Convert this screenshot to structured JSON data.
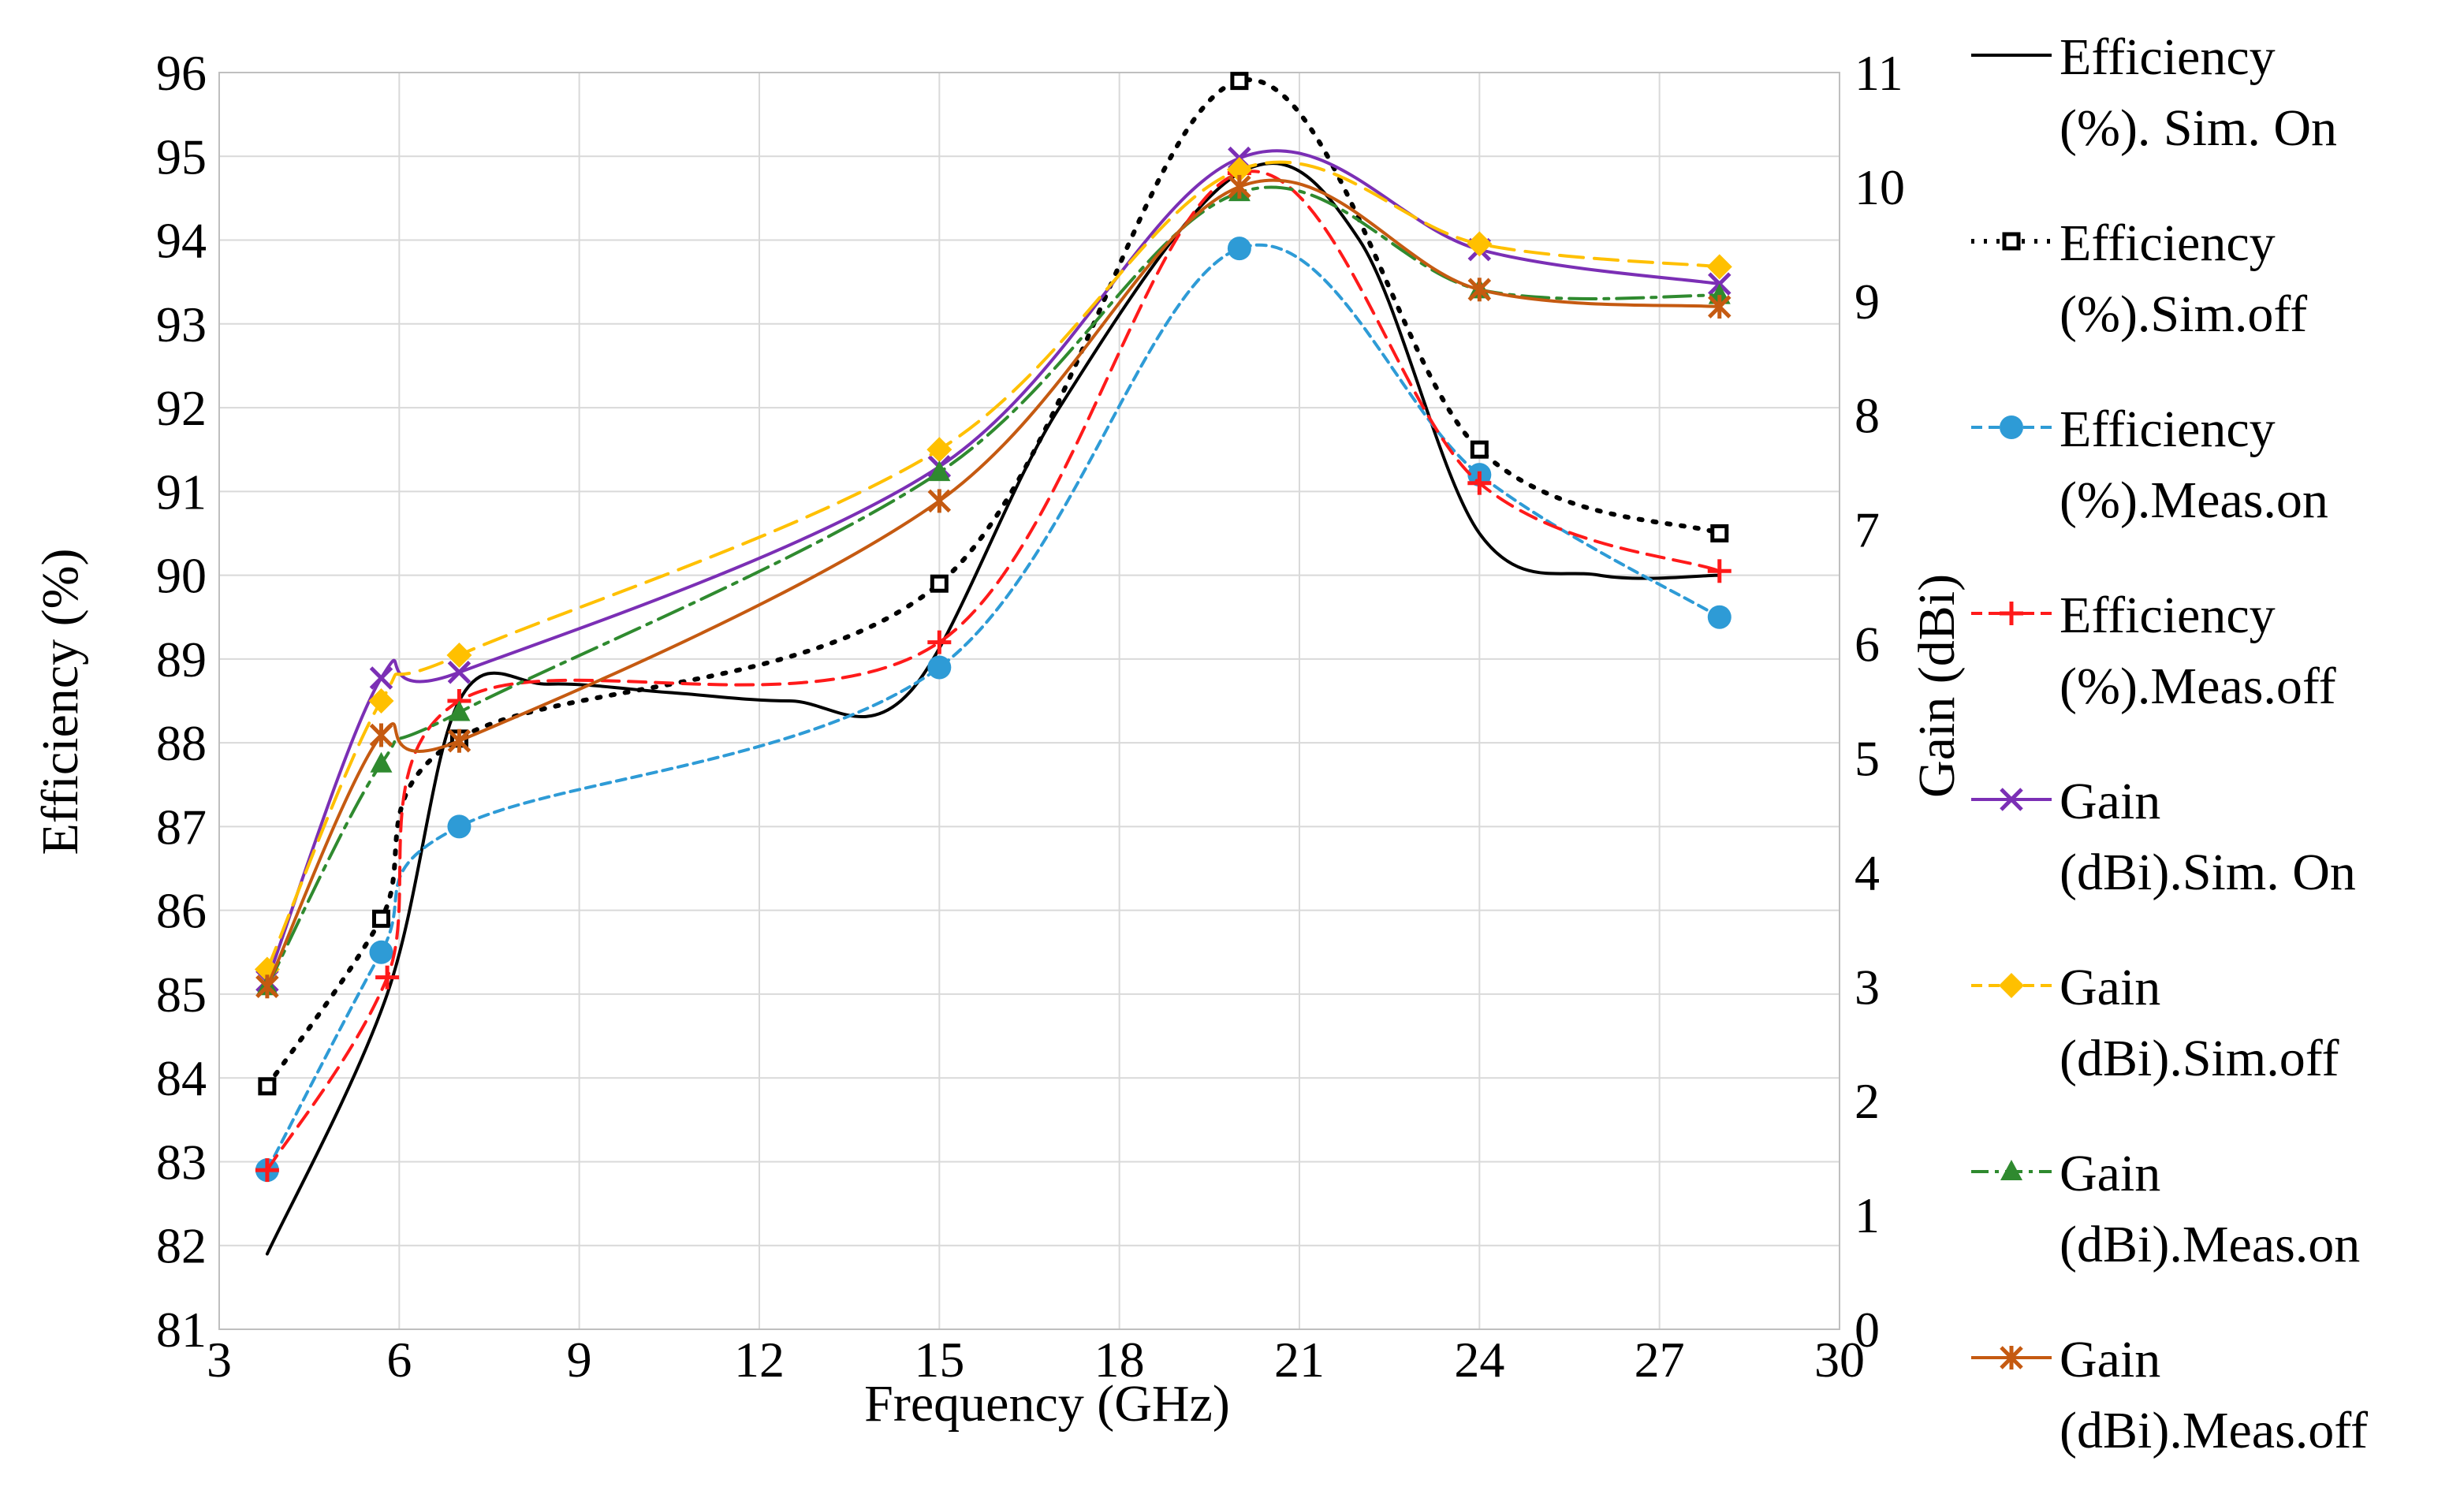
{
  "chart_data": {
    "type": "line",
    "title": "",
    "xlabel": "Frequency (GHz)",
    "ylabel": "Efficiency (%)",
    "y2label": "Gain (dBi)",
    "xlim": [
      3,
      30
    ],
    "ylim": [
      81,
      96
    ],
    "y2lim": [
      0,
      11
    ],
    "xticks": [
      "3",
      "6",
      "9",
      "12",
      "15",
      "18",
      "21",
      "24",
      "27",
      "30"
    ],
    "yticks": [
      "81",
      "82",
      "83",
      "84",
      "85",
      "86",
      "87",
      "88",
      "89",
      "90",
      "91",
      "92",
      "93",
      "94",
      "95",
      "96"
    ],
    "y2ticks": [
      "0",
      "1",
      "2",
      "3",
      "4",
      "5",
      "6",
      "7",
      "8",
      "9",
      "10",
      "11"
    ],
    "grid": true,
    "legend_position": "right",
    "series": [
      {
        "name_line1": "Efficiency",
        "name_line2": "(%). Sim. On",
        "axis": "left",
        "color": "#000000",
        "dash": "",
        "marker": "none",
        "x": [
          3.8,
          5.8,
          7.0,
          8.5,
          10.5,
          12.5,
          14.5,
          17.0,
          20.0,
          22.0,
          24.0,
          26.0,
          28.0
        ],
        "y": [
          81.9,
          85.0,
          88.5,
          88.7,
          88.6,
          88.5,
          88.6,
          92.0,
          94.8,
          94.0,
          90.5,
          90.0,
          90.0
        ],
        "markers_at": []
      },
      {
        "name_line1": "Efficiency",
        "name_line2": "(%).Sim.off",
        "axis": "left",
        "color": "#000000",
        "dash": "4 14",
        "marker": "square-open",
        "x": [
          3.8,
          5.7,
          7.0,
          15.0,
          20.0,
          24.0,
          28.0
        ],
        "y": [
          83.9,
          85.9,
          88.05,
          89.9,
          95.9,
          91.5,
          90.5
        ],
        "markers_at": [
          0,
          1,
          2,
          3,
          4,
          5,
          6
        ]
      },
      {
        "name_line1": "Efficiency",
        "name_line2": "(%).Meas.on",
        "axis": "left",
        "color": "#2e9bd6",
        "dash": "12 8",
        "marker": "circle",
        "x": [
          3.8,
          5.7,
          7.0,
          15.0,
          20.0,
          24.0,
          28.0
        ],
        "y": [
          82.9,
          85.5,
          87.0,
          88.9,
          93.9,
          91.2,
          89.5
        ],
        "markers_at": [
          0,
          1,
          2,
          3,
          4,
          5,
          6
        ]
      },
      {
        "name_line1": "Efficiency",
        "name_line2": "(%).Meas.off",
        "axis": "left",
        "color": "#ff1a1a",
        "dash": "22 12",
        "marker": "plus",
        "x": [
          3.8,
          5.8,
          7.0,
          15.0,
          20.0,
          24.0,
          28.0
        ],
        "y": [
          82.9,
          85.2,
          88.5,
          89.2,
          94.8,
          91.1,
          90.05
        ],
        "markers_at": [
          0,
          1,
          2,
          3,
          4,
          5,
          6
        ]
      },
      {
        "name_line1": "Gain",
        "name_line2": "(dBi).Sim. On",
        "axis": "right",
        "color": "#7b2fb5",
        "dash": "",
        "marker": "x",
        "x": [
          3.8,
          5.7,
          7.0,
          15.0,
          20.0,
          24.0,
          28.0
        ],
        "y": [
          3.05,
          5.7,
          5.75,
          7.55,
          10.25,
          9.45,
          9.15
        ],
        "markers_at": [
          0,
          1,
          2,
          3,
          4,
          5,
          6
        ]
      },
      {
        "name_line1": "Gain",
        "name_line2": "(dBi).Sim.off",
        "axis": "right",
        "color": "#ffc000",
        "dash": "30 14",
        "marker": "diamond",
        "x": [
          3.8,
          5.7,
          7.0,
          15.0,
          20.0,
          24.0,
          28.0
        ],
        "y": [
          3.15,
          5.5,
          5.9,
          7.7,
          10.15,
          9.5,
          9.3
        ],
        "markers_at": [
          0,
          1,
          2,
          3,
          4,
          5,
          6
        ]
      },
      {
        "name_line1": "Gain",
        "name_line2": "(dBi).Meas.on",
        "axis": "right",
        "color": "#2f8a2f",
        "dash": "34 10 6 10",
        "marker": "triangle",
        "x": [
          3.8,
          5.7,
          7.0,
          15.0,
          20.0,
          24.0,
          28.0
        ],
        "y": [
          3.0,
          4.95,
          5.4,
          7.5,
          9.95,
          9.1,
          9.05
        ],
        "markers_at": [
          0,
          1,
          2,
          3,
          4,
          5,
          6
        ]
      },
      {
        "name_line1": "Gain",
        "name_line2": "(dBi).Meas.off",
        "axis": "right",
        "color": "#c55a11",
        "dash": "",
        "marker": "asterisk",
        "x": [
          3.8,
          5.7,
          7.0,
          15.0,
          20.0,
          24.0,
          28.0
        ],
        "y": [
          3.0,
          5.2,
          5.15,
          7.25,
          10.0,
          9.1,
          8.95
        ],
        "markers_at": [
          0,
          1,
          2,
          3,
          4,
          5,
          6
        ]
      }
    ]
  }
}
